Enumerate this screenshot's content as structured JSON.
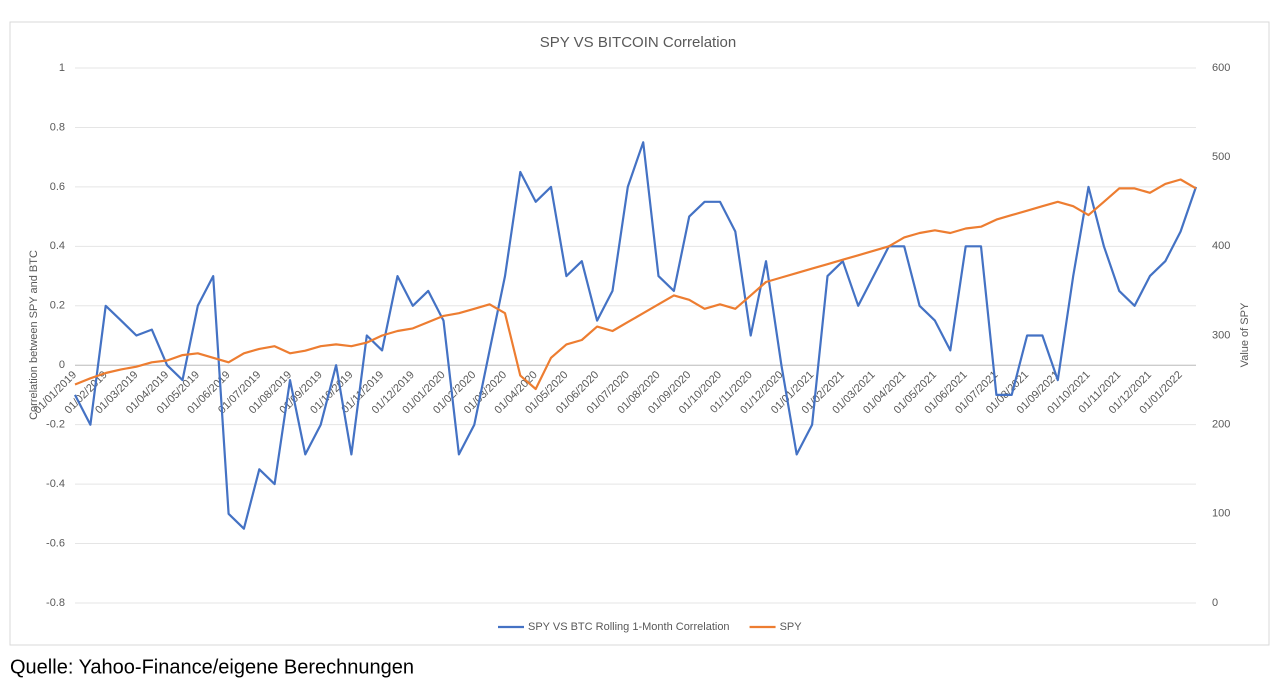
{
  "chart_data": {
    "type": "line",
    "title": "SPY VS BITCOIN Correlation",
    "y_label": "Correlation between SPY and BTC",
    "y2_label": "Value of SPY",
    "caption": "Quelle: Yahoo-Finance/eigene Berechnungen",
    "categories": [
      "01/01/2019",
      null,
      "01/02/2019",
      null,
      "01/03/2019",
      null,
      "01/04/2019",
      null,
      "01/05/2019",
      null,
      "01/06/2019",
      null,
      "01/07/2019",
      null,
      "01/08/2019",
      null,
      "01/09/2019",
      null,
      "01/10/2019",
      null,
      "01/11/2019",
      null,
      "01/12/2019",
      null,
      "01/01/2020",
      null,
      "01/02/2020",
      null,
      "01/03/2020",
      null,
      "01/04/2020",
      null,
      "01/05/2020",
      null,
      "01/06/2020",
      null,
      "01/07/2020",
      null,
      "01/08/2020",
      null,
      "01/09/2020",
      null,
      "01/10/2020",
      null,
      "01/11/2020",
      null,
      "01/12/2020",
      null,
      "01/01/2021",
      null,
      "01/02/2021",
      null,
      "01/03/2021",
      null,
      "01/04/2021",
      null,
      "01/05/2021",
      null,
      "01/06/2021",
      null,
      "01/07/2021",
      null,
      "01/08/2021",
      null,
      "01/09/2021",
      null,
      "01/10/2021",
      null,
      "01/11/2021",
      null,
      "01/12/2021",
      null,
      "01/01/2022",
      null
    ],
    "series": [
      {
        "name": "SPY VS BTC Rolling 1-Month Correlation",
        "color": "#4472c4",
        "values": [
          -0.1,
          -0.2,
          0.2,
          0.15,
          0.1,
          0.12,
          0.0,
          -0.05,
          0.2,
          0.3,
          -0.5,
          -0.55,
          -0.35,
          -0.4,
          -0.05,
          -0.3,
          -0.2,
          0.0,
          -0.3,
          0.1,
          0.05,
          0.3,
          0.2,
          0.25,
          0.15,
          -0.3,
          -0.2,
          0.05,
          0.3,
          0.65,
          0.55,
          0.6,
          0.3,
          0.35,
          0.15,
          0.25,
          0.6,
          0.75,
          0.3,
          0.25,
          0.5,
          0.55,
          0.55,
          0.45,
          0.1,
          0.35,
          0.0,
          -0.3,
          -0.2,
          0.3,
          0.35,
          0.2,
          0.3,
          0.4,
          0.4,
          0.2,
          0.15,
          0.05,
          0.4,
          0.4,
          -0.1,
          -0.1,
          0.1,
          0.1,
          -0.05,
          0.3,
          0.6,
          0.4,
          0.25,
          0.2,
          0.3,
          0.35,
          0.45,
          0.6
        ]
      },
      {
        "name": "SPY",
        "color": "#ed7d31",
        "axis": "y2",
        "values": [
          245,
          252,
          258,
          262,
          265,
          270,
          272,
          278,
          280,
          275,
          270,
          280,
          285,
          288,
          280,
          283,
          288,
          290,
          288,
          292,
          300,
          305,
          308,
          315,
          322,
          325,
          330,
          335,
          325,
          255,
          240,
          275,
          290,
          295,
          310,
          305,
          315,
          325,
          335,
          345,
          340,
          330,
          335,
          330,
          345,
          360,
          365,
          370,
          375,
          380,
          385,
          390,
          395,
          400,
          410,
          415,
          418,
          415,
          420,
          422,
          430,
          435,
          440,
          445,
          450,
          445,
          435,
          450,
          465,
          465,
          460,
          470,
          475,
          465
        ]
      }
    ],
    "ylim": [
      -0.8,
      1
    ],
    "yticks": [
      1,
      0.8,
      0.6,
      0.4,
      0.2,
      0,
      -0.2,
      -0.4,
      -0.6,
      -0.8
    ],
    "y2lim": [
      0,
      600
    ],
    "y2ticks": [
      600,
      500,
      400,
      300,
      200,
      100,
      0
    ],
    "grid": true,
    "legend": "bottom"
  }
}
